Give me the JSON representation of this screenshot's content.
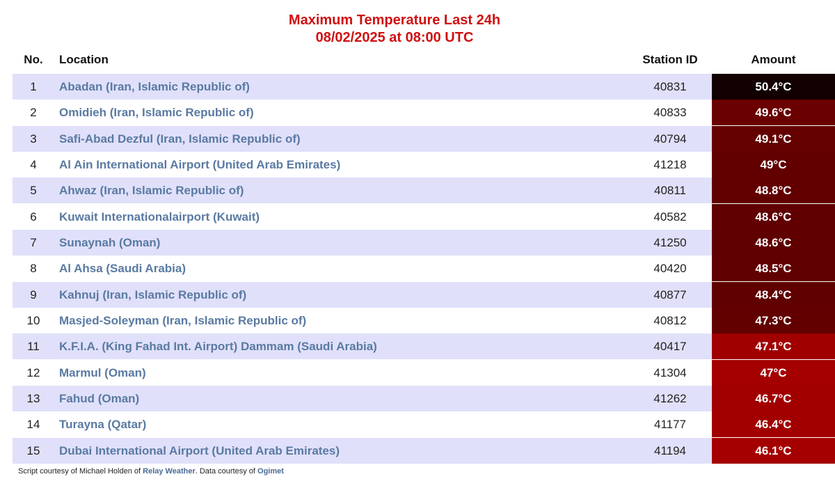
{
  "header": {
    "title": "Maximum Temperature Last 24h",
    "subtitle": "08/02/2025 at 08:00 UTC"
  },
  "table": {
    "columns": [
      "No.",
      "Location",
      "Station ID",
      "Amount"
    ],
    "rows": [
      [
        "1",
        "Abadan (Iran, Islamic Republic of)",
        "40831",
        "50.4°C"
      ],
      [
        "2",
        "Omidieh (Iran, Islamic Republic of)",
        "40833",
        "49.6°C"
      ],
      [
        "3",
        "Safi-Abad Dezful (Iran, Islamic Republic of)",
        "40794",
        "49.1°C"
      ],
      [
        "4",
        "Al Ain International Airport (United Arab Emirates)",
        "41218",
        "49°C"
      ],
      [
        "5",
        "Ahwaz (Iran, Islamic Republic of)",
        "40811",
        "48.8°C"
      ],
      [
        "6",
        "Kuwait Internationalairport (Kuwait)",
        "40582",
        "48.6°C"
      ],
      [
        "7",
        "Sunaynah (Oman)",
        "41250",
        "48.6°C"
      ],
      [
        "8",
        "Al Ahsa (Saudi Arabia)",
        "40420",
        "48.5°C"
      ],
      [
        "9",
        "Kahnuj (Iran, Islamic Republic of)",
        "40877",
        "48.4°C"
      ],
      [
        "10",
        "Masjed-Soleyman (Iran, Islamic Republic of)",
        "40812",
        "47.3°C"
      ],
      [
        "11",
        "K.F.I.A. (King Fahad Int. Airport) Dammam (Saudi Arabia)",
        "40417",
        "47.1°C"
      ],
      [
        "12",
        "Marmul (Oman)",
        "41304",
        "47°C"
      ],
      [
        "13",
        "Fahud (Oman)",
        "41262",
        "46.7°C"
      ],
      [
        "14",
        "Turayna (Qatar)",
        "41177",
        "46.4°C"
      ],
      [
        "15",
        "Dubai International Airport (United Arab Emirates)",
        "41194",
        "46.1°C"
      ]
    ],
    "amount_colors": [
      "#120000",
      "#6a0000",
      "#640000",
      "#620000",
      "#620000",
      "#600000",
      "#600000",
      "#600000",
      "#600000",
      "#620000",
      "#a00000",
      "#a40000",
      "#a20000",
      "#a20000",
      "#a50000"
    ]
  },
  "footer": {
    "parts": [
      "Script courtesy of  Michael Holden of ",
      "Relay Weather",
      ". Data courtesy of ",
      "Ogimet"
    ]
  }
}
